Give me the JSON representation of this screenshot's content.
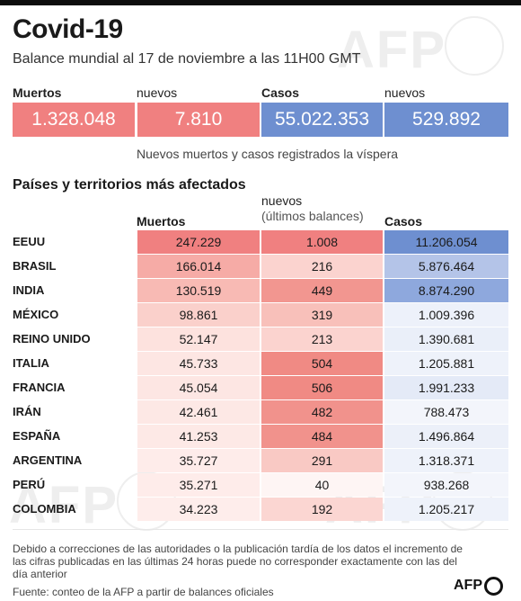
{
  "title": "Covid-19",
  "subtitle": "Balance mundial al 17 de noviembre a las 11H00 GMT",
  "watermark": "AFP",
  "summary": {
    "muertos_label": "Muertos",
    "muertos_value": "1.328.048",
    "nuevos_muertos_label": "nuevos",
    "nuevos_muertos_value": "7.810",
    "casos_label": "Casos",
    "casos_value": "55.022.353",
    "nuevos_casos_label": "nuevos",
    "nuevos_casos_value": "529.892",
    "note": "Nuevos muertos y casos registrados la víspera",
    "colors": {
      "deaths": "#f08080",
      "cases": "#6e8fd0"
    }
  },
  "table": {
    "section_title": "Países y territorios más afectados",
    "headers": {
      "muertos": "Muertos",
      "nuevos": "nuevos",
      "nuevos_sub": "(últimos balances)",
      "casos": "Casos"
    },
    "rows": [
      {
        "country": "EEUU",
        "muertos": "247.229",
        "nuevos": "1.008",
        "casos": "11.206.054"
      },
      {
        "country": "BRASIL",
        "muertos": "166.014",
        "nuevos": "216",
        "casos": "5.876.464"
      },
      {
        "country": "INDIA",
        "muertos": "130.519",
        "nuevos": "449",
        "casos": "8.874.290"
      },
      {
        "country": "MÉXICO",
        "muertos": "98.861",
        "nuevos": "319",
        "casos": "1.009.396"
      },
      {
        "country": "REINO UNIDO",
        "muertos": "52.147",
        "nuevos": "213",
        "casos": "1.390.681"
      },
      {
        "country": "ITALIA",
        "muertos": "45.733",
        "nuevos": "504",
        "casos": "1.205.881"
      },
      {
        "country": "FRANCIA",
        "muertos": "45.054",
        "nuevos": "506",
        "casos": "1.991.233"
      },
      {
        "country": "IRÁN",
        "muertos": "42.461",
        "nuevos": "482",
        "casos": "788.473"
      },
      {
        "country": "ESPAÑA",
        "muertos": "41.253",
        "nuevos": "484",
        "casos": "1.496.864"
      },
      {
        "country": "ARGENTINA",
        "muertos": "35.727",
        "nuevos": "291",
        "casos": "1.318.371"
      },
      {
        "country": "PERÚ",
        "muertos": "35.271",
        "nuevos": "40",
        "casos": "938.268"
      },
      {
        "country": "COLOMBIA",
        "muertos": "34.223",
        "nuevos": "192",
        "casos": "1.205.217"
      }
    ]
  },
  "footnote": "Debido a correcciones de las autoridades o la publicación tardía de los datos  el incremento de las cifras publicadas en las últimas 24 horas puede no corresponder exactamente con las del día anterior",
  "source": "Fuente: conteo de la AFP a partir de balances oficiales",
  "logo": "AFP"
}
